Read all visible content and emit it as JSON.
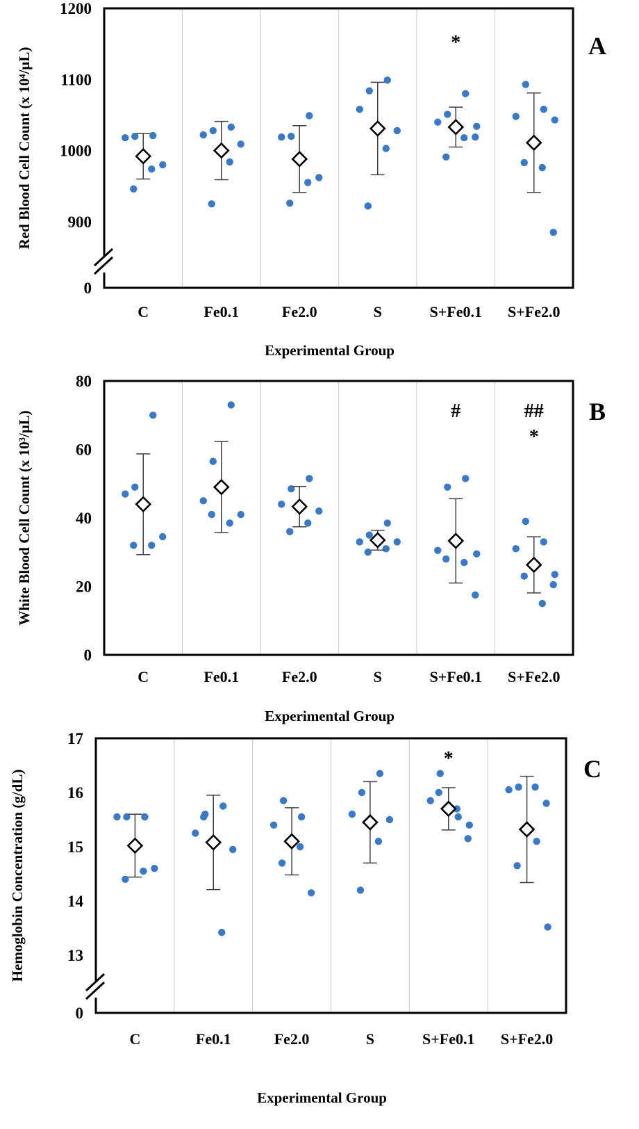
{
  "chart_data": [
    {
      "type": "scatter",
      "panel_label": "A",
      "xlabel": "Experimental Group",
      "ylabel": "Red Blood Cell Count (x 10⁴/μL)",
      "categories": [
        "C",
        "Fe0.1",
        "Fe2.0",
        "S",
        "S+Fe0.1",
        "S+Fe2.0"
      ],
      "y_ticks": [
        "0",
        "900",
        "1000",
        "1100",
        "1200"
      ],
      "axis_break": true,
      "ylim_upper": [
        850,
        1200
      ],
      "grid": "vertical separators between groups",
      "colors": {
        "points": "#3a78c8",
        "mean_marker": "#000000"
      },
      "series": [
        {
          "name": "individual",
          "values": [
            [
              1018,
              1020,
              1021,
              946,
              974,
              980
            ],
            [
              1022,
              1028,
              1033,
              925,
              984,
              1009
            ],
            [
              1019,
              1020,
              1049,
              926,
              955,
              962
            ],
            [
              1058,
              1084,
              1099,
              922,
              1003,
              1028
            ],
            [
              1040,
              1051,
              1080,
              991,
              1018,
              1019,
              1034
            ],
            [
              1048,
              1093,
              1058,
              983,
              976,
              885,
              1043
            ]
          ]
        },
        {
          "name": "mean",
          "values": [
            992,
            1000,
            988,
            1031,
            1033,
            1011
          ]
        },
        {
          "name": "sd",
          "values": [
            32,
            41,
            47,
            65,
            28,
            70
          ]
        }
      ],
      "annotations": [
        {
          "category": "S+Fe0.1",
          "symbols": [
            "*"
          ]
        }
      ]
    },
    {
      "type": "scatter",
      "panel_label": "B",
      "xlabel": "Experimental Group",
      "ylabel": "White Blood Cell Count (x 10³/μL)",
      "categories": [
        "C",
        "Fe0.1",
        "Fe2.0",
        "S",
        "S+Fe0.1",
        "S+Fe2.0"
      ],
      "y_ticks": [
        "0",
        "20",
        "40",
        "60",
        "80"
      ],
      "axis_break": false,
      "ylim": [
        0,
        80
      ],
      "grid": "vertical separators between groups",
      "colors": {
        "points": "#3a78c8",
        "mean_marker": "#000000"
      },
      "series": [
        {
          "name": "individual",
          "values": [
            [
              47,
              49,
              70,
              32,
              32,
              34.5
            ],
            [
              45,
              56.5,
              73,
              41,
              38.5,
              41
            ],
            [
              44,
              48.5,
              51.5,
              36,
              38.5,
              42
            ],
            [
              33,
              35,
              38.5,
              30,
              31,
              33
            ],
            [
              30.5,
              49,
              51.5,
              28,
              27,
              17.5,
              29.5
            ],
            [
              31,
              39,
              33,
              23,
              15,
              20.5,
              23.5
            ]
          ]
        },
        {
          "name": "mean",
          "values": [
            44,
            49,
            43.3,
            33.5,
            33.3,
            26.3
          ]
        },
        {
          "name": "sd",
          "values": [
            14.7,
            13.3,
            5.9,
            2.9,
            12.3,
            8.2
          ]
        }
      ],
      "annotations": [
        {
          "category": "S+Fe0.1",
          "symbols": [
            "#"
          ]
        },
        {
          "category": "S+Fe2.0",
          "symbols": [
            "##",
            "*"
          ]
        }
      ]
    },
    {
      "type": "scatter",
      "panel_label": "C",
      "xlabel": "Experimental Group",
      "ylabel": "Hemoglobin Concentration (g/dL)",
      "categories": [
        "C",
        "Fe0.1",
        "Fe2.0",
        "S",
        "S+Fe0.1",
        "S+Fe2.0"
      ],
      "y_ticks": [
        "0",
        "13",
        "14",
        "15",
        "16",
        "17"
      ],
      "axis_break": true,
      "ylim_upper": [
        12.5,
        17
      ],
      "grid": "vertical separators between groups",
      "colors": {
        "points": "#3a78c8",
        "mean_marker": "#000000"
      },
      "series": [
        {
          "name": "individual",
          "values": [
            [
              15.55,
              15.55,
              15.55,
              14.4,
              14.55,
              14.6
            ],
            [
              15.25,
              15.6,
              15.75,
              15.55,
              13.42,
              14.95
            ],
            [
              15.4,
              15.85,
              15.55,
              14.7,
              15.0,
              14.15
            ],
            [
              15.6,
              16.0,
              16.35,
              14.2,
              15.1,
              15.5
            ],
            [
              15.85,
              16.35,
              15.55,
              16.0,
              15.7,
              15.15,
              15.4
            ],
            [
              16.05,
              16.1,
              15.1,
              14.65,
              16.1,
              15.8,
              13.52
            ]
          ]
        },
        {
          "name": "mean",
          "values": [
            15.02,
            15.08,
            15.1,
            15.45,
            15.7,
            15.32
          ]
        },
        {
          "name": "sd",
          "values": [
            0.58,
            0.87,
            0.62,
            0.75,
            0.39,
            0.98
          ]
        }
      ],
      "annotations": [
        {
          "category": "S+Fe0.1",
          "symbols": [
            "*"
          ]
        }
      ]
    }
  ]
}
